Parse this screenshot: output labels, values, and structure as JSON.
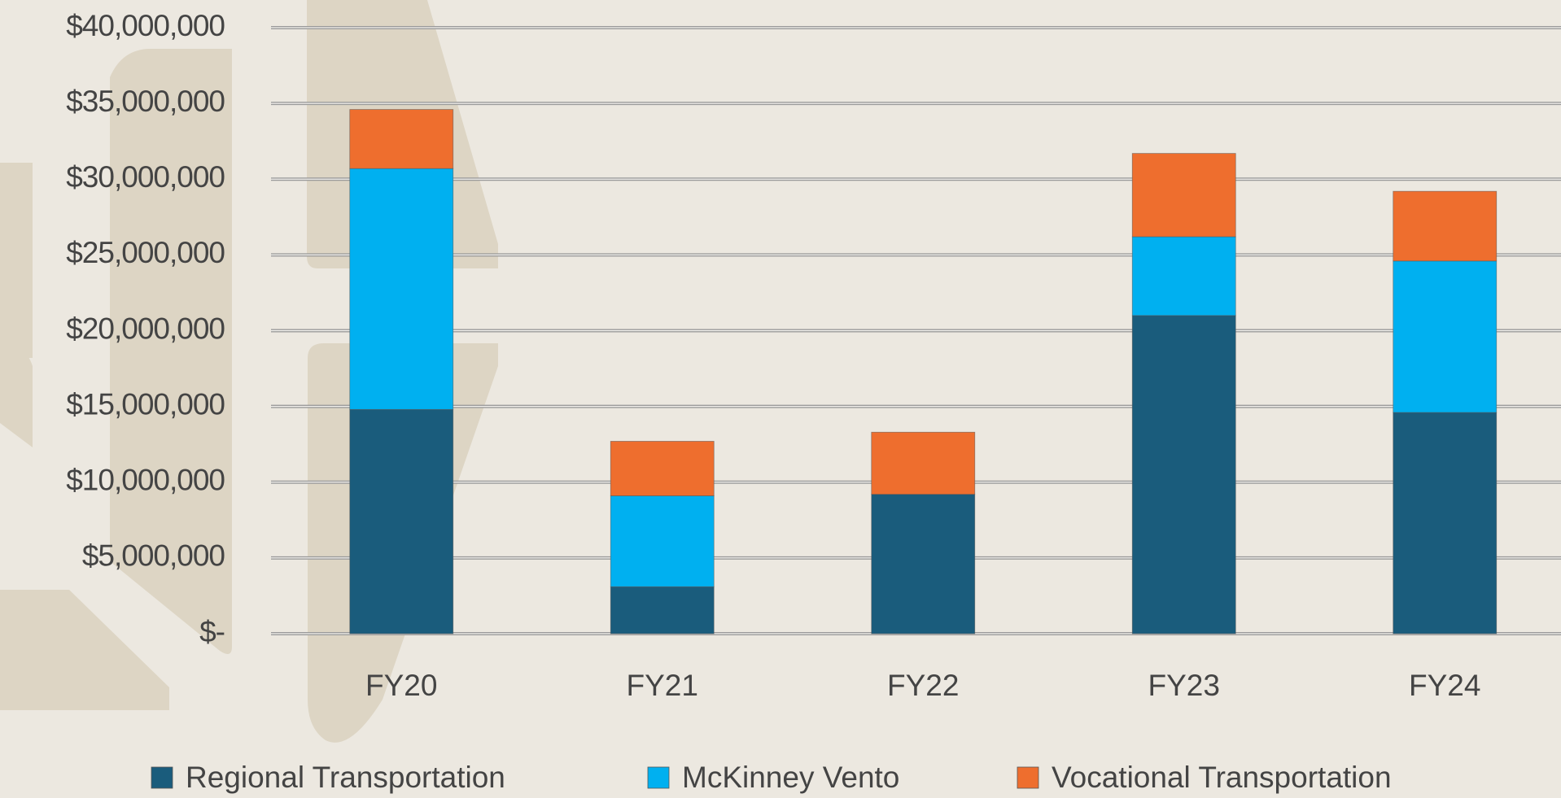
{
  "chart_data": {
    "type": "stacked_bar",
    "categories": [
      "FY20",
      "FY21",
      "FY22",
      "FY23",
      "FY24"
    ],
    "series": [
      {
        "name": "Regional Transportation",
        "color": "#1a5c7c",
        "values": [
          14800000,
          3100000,
          9200000,
          21000000,
          14600000
        ]
      },
      {
        "name": "McKinney Vento",
        "color": "#00b0f0",
        "values": [
          15900000,
          6000000,
          0,
          5200000,
          10000000
        ]
      },
      {
        "name": "Vocational Transportation",
        "color": "#ee6e2e",
        "values": [
          3900000,
          3600000,
          4100000,
          5500000,
          4600000
        ]
      }
    ],
    "ylim": [
      0,
      40000000
    ],
    "yticks": [
      {
        "value": 0,
        "label": "$-"
      },
      {
        "value": 5000000,
        "label": "$5,000,000"
      },
      {
        "value": 10000000,
        "label": "$10,000,000"
      },
      {
        "value": 15000000,
        "label": "$15,000,000"
      },
      {
        "value": 20000000,
        "label": "$20,000,000"
      },
      {
        "value": 25000000,
        "label": "$25,000,000"
      },
      {
        "value": 30000000,
        "label": "$30,000,000"
      },
      {
        "value": 35000000,
        "label": "$35,000,000"
      },
      {
        "value": 40000000,
        "label": "$40,000,000"
      }
    ],
    "grid": true,
    "legend": "bottom"
  }
}
